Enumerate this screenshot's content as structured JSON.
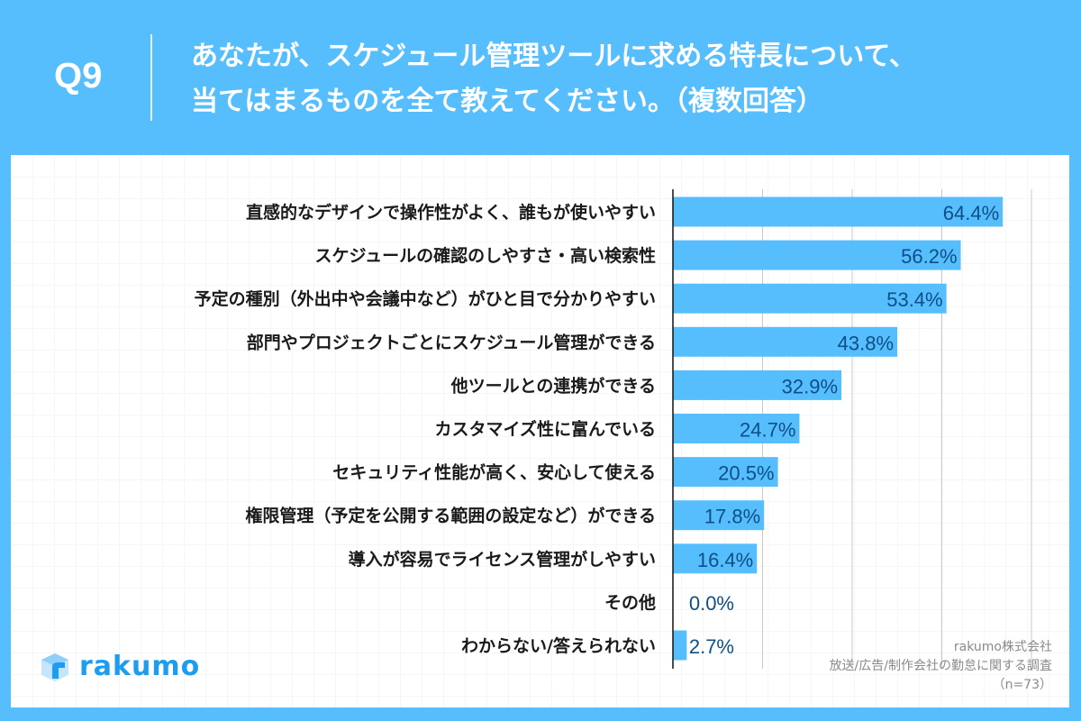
{
  "header": {
    "question_no": "Q9",
    "title": "あなたが、スケジュール管理ツールに求める特長について、\n当てはまるものを全て教えてください。（複数回答）"
  },
  "colors": {
    "background": "#56befd",
    "bar": "#56befd",
    "value_text": "#0d4f86"
  },
  "chart_data": {
    "type": "bar",
    "orientation": "horizontal",
    "grid": true,
    "xlim": [
      0,
      70
    ],
    "categories": [
      "直感的なデザインで操作性がよく、誰もが使いやすい",
      "スケジュールの確認のしやすさ・高い検索性",
      "予定の種別（外出中や会議中など）がひと目で分かりやすい",
      "部門やプロジェクトごとにスケジュール管理ができる",
      "他ツールとの連携ができる",
      "カスタマイズ性に富んでいる",
      "セキュリティ性能が高く、安心して使える",
      "権限管理（予定を公開する範囲の設定など）ができる",
      "導入が容易でライセンス管理がしやすい",
      "その他",
      "わからない/答えられない"
    ],
    "values": [
      64.4,
      56.2,
      53.4,
      43.8,
      32.9,
      24.7,
      20.5,
      17.8,
      16.4,
      0.0,
      2.7
    ],
    "value_labels": [
      "64.4%",
      "56.2%",
      "53.4%",
      "43.8%",
      "32.9%",
      "24.7%",
      "20.5%",
      "17.8%",
      "16.4%",
      "0.0%",
      "2.7%"
    ]
  },
  "logo": {
    "text": "rakumo"
  },
  "source": {
    "company": "rakumo株式会社",
    "survey": "放送/広告/制作会社の勤怠に関する調査",
    "n": "（n=73）"
  }
}
